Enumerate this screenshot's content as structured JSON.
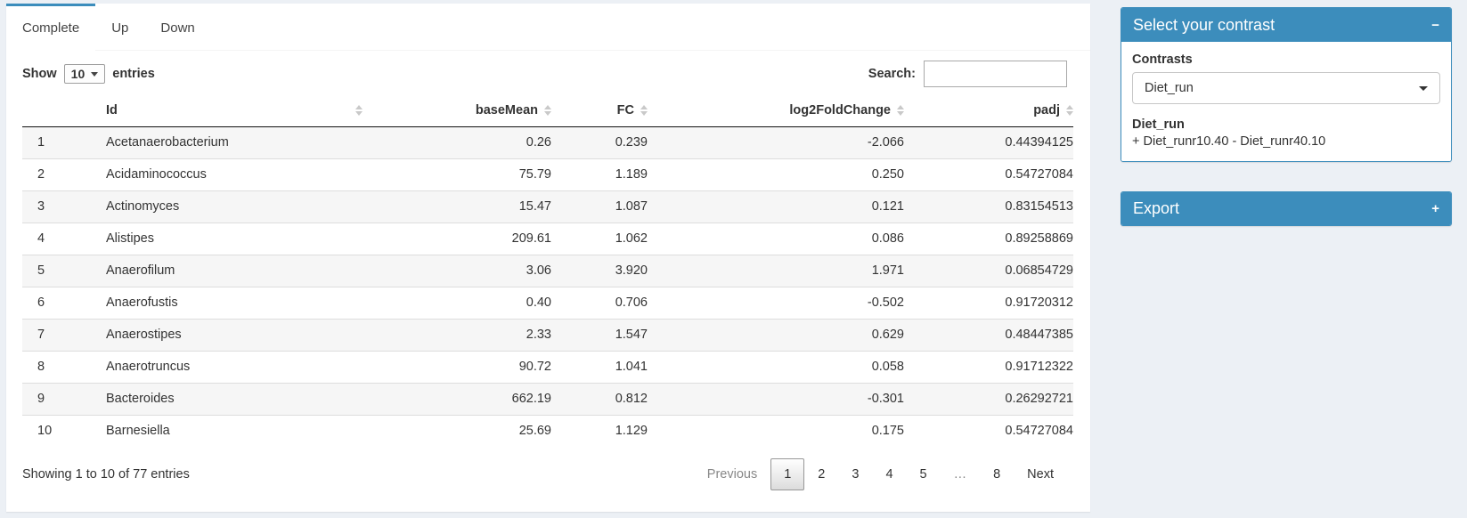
{
  "tabs": [
    {
      "label": "Complete",
      "active": true
    },
    {
      "label": "Up"
    },
    {
      "label": "Down"
    }
  ],
  "controls": {
    "show_label": "Show",
    "page_length": "10",
    "entries_label": "entries",
    "search_label": "Search:",
    "search_value": ""
  },
  "table": {
    "columns": [
      "Id",
      "baseMean",
      "FC",
      "log2FoldChange",
      "padj"
    ],
    "rows": [
      {
        "n": "1",
        "id": "Acetanaerobacterium",
        "baseMean": "0.26",
        "fc": "0.239",
        "log2fc": "-2.066",
        "padj": "0.44394125"
      },
      {
        "n": "2",
        "id": "Acidaminococcus",
        "baseMean": "75.79",
        "fc": "1.189",
        "log2fc": "0.250",
        "padj": "0.54727084"
      },
      {
        "n": "3",
        "id": "Actinomyces",
        "baseMean": "15.47",
        "fc": "1.087",
        "log2fc": "0.121",
        "padj": "0.83154513"
      },
      {
        "n": "4",
        "id": "Alistipes",
        "baseMean": "209.61",
        "fc": "1.062",
        "log2fc": "0.086",
        "padj": "0.89258869"
      },
      {
        "n": "5",
        "id": "Anaerofilum",
        "baseMean": "3.06",
        "fc": "3.920",
        "log2fc": "1.971",
        "padj": "0.06854729"
      },
      {
        "n": "6",
        "id": "Anaerofustis",
        "baseMean": "0.40",
        "fc": "0.706",
        "log2fc": "-0.502",
        "padj": "0.91720312"
      },
      {
        "n": "7",
        "id": "Anaerostipes",
        "baseMean": "2.33",
        "fc": "1.547",
        "log2fc": "0.629",
        "padj": "0.48447385"
      },
      {
        "n": "8",
        "id": "Anaerotruncus",
        "baseMean": "90.72",
        "fc": "1.041",
        "log2fc": "0.058",
        "padj": "0.91712322"
      },
      {
        "n": "9",
        "id": "Bacteroides",
        "baseMean": "662.19",
        "fc": "0.812",
        "log2fc": "-0.301",
        "padj": "0.26292721"
      },
      {
        "n": "10",
        "id": "Barnesiella",
        "baseMean": "25.69",
        "fc": "1.129",
        "log2fc": "0.175",
        "padj": "0.54727084"
      }
    ]
  },
  "footer": {
    "info": "Showing 1 to 10 of 77 entries",
    "pagination": [
      {
        "label": "Previous",
        "state": "disabled"
      },
      {
        "label": "1",
        "state": "active"
      },
      {
        "label": "2"
      },
      {
        "label": "3"
      },
      {
        "label": "4"
      },
      {
        "label": "5"
      },
      {
        "label": "…",
        "state": "ellipsis"
      },
      {
        "label": "8"
      },
      {
        "label": "Next"
      }
    ]
  },
  "contrast_panel": {
    "title": "Select your contrast",
    "collapse_icon": "−",
    "contrasts_label": "Contrasts",
    "selected_contrast": "Diet_run",
    "contrast_name": "Diet_run",
    "contrast_formula": "+ Diet_runr10.40 - Diet_runr40.10"
  },
  "export_panel": {
    "title": "Export",
    "expand_icon": "+"
  },
  "colors": {
    "primary": "#3c8dbc",
    "page_bg": "#ecf0f5",
    "stripe": "#f6f6f6",
    "header_border": "#111111",
    "row_border": "#dddddd"
  }
}
